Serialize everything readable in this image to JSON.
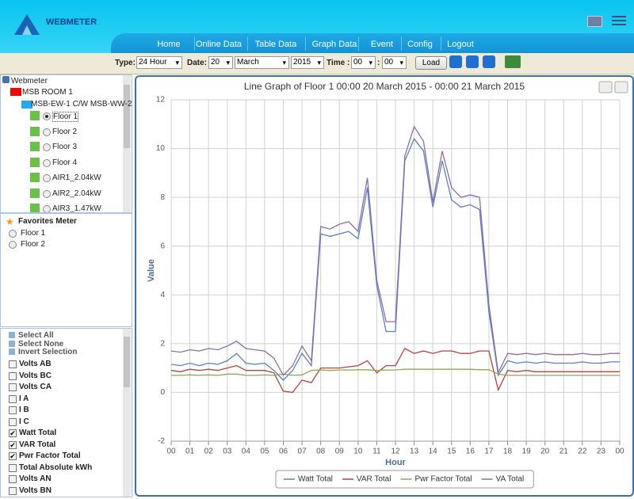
{
  "header": {
    "brand": "WEBMETER",
    "nav": [
      "Home",
      "Online Data",
      "Table Data",
      "Graph Data",
      "Event",
      "Config",
      "Logout"
    ]
  },
  "toolbar": {
    "type_label": "Type:",
    "type": "24 Hour",
    "date_label": "Date:",
    "day": "20",
    "month": "March",
    "year": "2015",
    "time_label": "Time :",
    "hour": "00",
    "time_sep": ":",
    "minute": "00",
    "load": "Load"
  },
  "tree": {
    "root": "Webmeter",
    "room": "MSB ROOM 1",
    "group": "MSB-EW-1 C/W MSB-WW-2",
    "meters": [
      "Floor 1",
      "Floor 2",
      "Floor 3",
      "Floor 4",
      "AIR1_2.04kW",
      "AIR2_2.04kW",
      "AIR3_1.47kW"
    ]
  },
  "favorites": {
    "title": "Favorites Meter",
    "items": [
      "Floor 1",
      "Floor 2"
    ]
  },
  "selection": {
    "actions": [
      "Select All",
      "Select None",
      "Invert Selection"
    ],
    "fields": [
      {
        "label": "Volts AB",
        "checked": false
      },
      {
        "label": "Volts BC",
        "checked": false
      },
      {
        "label": "Volts CA",
        "checked": false
      },
      {
        "label": "I A",
        "checked": false
      },
      {
        "label": "I B",
        "checked": false
      },
      {
        "label": "I C",
        "checked": false
      },
      {
        "label": "Watt Total",
        "checked": true
      },
      {
        "label": "VAR Total",
        "checked": true
      },
      {
        "label": "Pwr Factor Total",
        "checked": true
      },
      {
        "label": "Total Absolute kWh",
        "checked": false
      },
      {
        "label": "Volts AN",
        "checked": false
      },
      {
        "label": "Volts BN",
        "checked": false
      }
    ]
  },
  "chart_data": {
    "type": "line",
    "title": "Line Graph of Floor 1 00:00 20 March 2015 - 00:00 21 March 2015",
    "x_label": "Hour",
    "y_label": "Value",
    "x": [
      0,
      0.5,
      1,
      1.5,
      2,
      2.5,
      3,
      3.5,
      4,
      4.5,
      5,
      5.5,
      6,
      6.5,
      7,
      7.5,
      8,
      8.5,
      9,
      9.5,
      10,
      10.5,
      11,
      11.5,
      12,
      12.5,
      13,
      13.5,
      14,
      14.5,
      15,
      15.5,
      16,
      16.5,
      17,
      17.5,
      18,
      18.5,
      19,
      19.5,
      20,
      20.5,
      21,
      21.5,
      22,
      22.5,
      23,
      23.5,
      24
    ],
    "xlim": [
      0,
      24
    ],
    "xticks": [
      {
        "value": 0,
        "label": "00"
      },
      {
        "value": 1,
        "label": "01"
      },
      {
        "value": 2,
        "label": "02"
      },
      {
        "value": 3,
        "label": "03"
      },
      {
        "value": 4,
        "label": "04"
      },
      {
        "value": 5,
        "label": "05"
      },
      {
        "value": 6,
        "label": "06"
      },
      {
        "value": 7,
        "label": "07"
      },
      {
        "value": 8,
        "label": "08"
      },
      {
        "value": 9,
        "label": "09"
      },
      {
        "value": 10,
        "label": "10"
      },
      {
        "value": 11,
        "label": "11"
      },
      {
        "value": 12,
        "label": "12"
      },
      {
        "value": 13,
        "label": "13"
      },
      {
        "value": 14,
        "label": "14"
      },
      {
        "value": 15,
        "label": "15"
      },
      {
        "value": 16,
        "label": "16"
      },
      {
        "value": 17,
        "label": "17"
      },
      {
        "value": 18,
        "label": "18"
      },
      {
        "value": 19,
        "label": "19"
      },
      {
        "value": 20,
        "label": "20"
      },
      {
        "value": 21,
        "label": "21"
      },
      {
        "value": 22,
        "label": "22"
      },
      {
        "value": 23,
        "label": "23"
      },
      {
        "value": 24,
        "label": "00"
      }
    ],
    "ylim": [
      -2,
      12
    ],
    "yticks": [
      -2,
      0,
      2,
      4,
      6,
      8,
      10,
      12
    ],
    "grid": true,
    "series": [
      {
        "name": "Watt Total",
        "color": "#5b7fc0",
        "values": [
          1.15,
          1.1,
          1.2,
          1.1,
          1.2,
          1.15,
          1.3,
          1.6,
          1.2,
          1.15,
          1.2,
          0.9,
          0.5,
          0.9,
          1.6,
          1.1,
          6.5,
          6.4,
          6.5,
          6.6,
          6.3,
          8.4,
          4.4,
          2.5,
          2.5,
          9.5,
          10.4,
          9.9,
          7.6,
          9.5,
          7.9,
          7.6,
          7.7,
          7.5,
          3.3,
          0.7,
          1.3,
          1.2,
          1.25,
          1.2,
          1.25,
          1.2,
          1.2,
          1.2,
          1.25,
          1.2,
          1.2,
          1.25,
          1.25
        ]
      },
      {
        "name": "VAR Total",
        "color": "#b3443f",
        "values": [
          0.9,
          0.85,
          0.95,
          0.9,
          0.95,
          0.9,
          1.0,
          1.1,
          0.9,
          0.9,
          0.9,
          0.8,
          0.05,
          0.0,
          0.5,
          0.4,
          1.0,
          1.0,
          1.0,
          1.05,
          1.1,
          1.3,
          0.8,
          1.1,
          1.1,
          1.8,
          1.6,
          1.7,
          1.6,
          1.7,
          1.7,
          1.6,
          1.6,
          1.7,
          1.7,
          0.1,
          0.9,
          0.85,
          0.9,
          0.85,
          0.85,
          0.85,
          0.85,
          0.85,
          0.85,
          0.85,
          0.85,
          0.85,
          0.85
        ]
      },
      {
        "name": "Pwr Factor Total",
        "color": "#8fa855",
        "values": [
          0.7,
          0.7,
          0.72,
          0.7,
          0.72,
          0.7,
          0.75,
          0.75,
          0.7,
          0.7,
          0.72,
          0.7,
          0.75,
          0.7,
          0.72,
          0.9,
          0.92,
          0.9,
          0.92,
          0.92,
          0.93,
          0.93,
          0.9,
          0.92,
          0.92,
          0.95,
          0.95,
          0.95,
          0.95,
          0.95,
          0.95,
          0.95,
          0.95,
          0.93,
          0.93,
          0.75,
          0.7,
          0.7,
          0.7,
          0.7,
          0.7,
          0.7,
          0.7,
          0.7,
          0.7,
          0.7,
          0.7,
          0.7,
          0.7
        ]
      },
      {
        "name": "VA Total",
        "color": "#8a70a5",
        "values": [
          1.7,
          1.65,
          1.75,
          1.7,
          1.8,
          1.75,
          1.9,
          2.1,
          1.8,
          1.75,
          1.7,
          1.4,
          0.7,
          1.1,
          1.9,
          1.3,
          6.8,
          6.7,
          6.9,
          7.0,
          6.6,
          8.8,
          4.6,
          2.9,
          2.9,
          9.7,
          10.9,
          10.3,
          7.8,
          9.9,
          8.4,
          8.0,
          8.1,
          8.0,
          3.6,
          0.8,
          1.6,
          1.55,
          1.6,
          1.55,
          1.6,
          1.55,
          1.55,
          1.55,
          1.6,
          1.55,
          1.55,
          1.6,
          1.6
        ]
      }
    ]
  }
}
